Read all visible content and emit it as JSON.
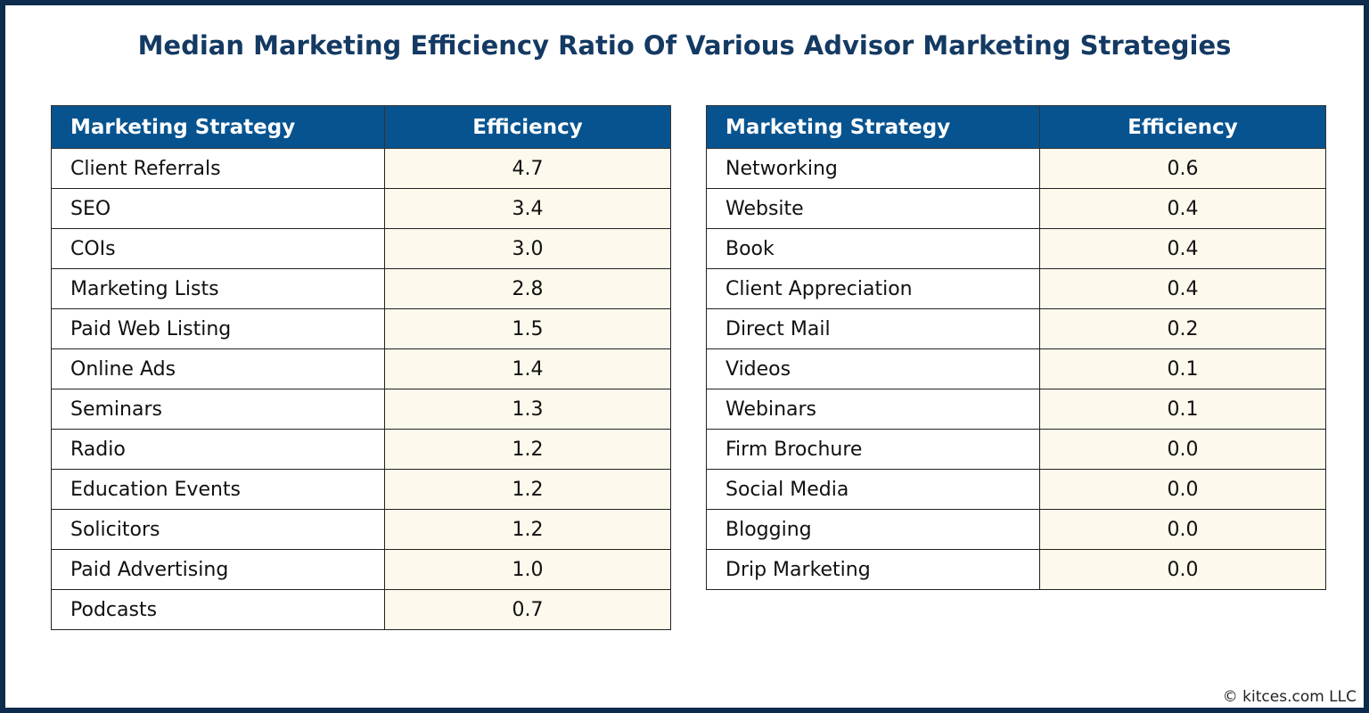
{
  "title": "Median Marketing Efficiency Ratio Of Various Advisor Marketing Strategies",
  "footer": "© kitces.com LLC",
  "colors": {
    "header_bg": "#06538f",
    "value_bg": "#fdf9ec",
    "frame": "#0d2b4c",
    "title": "#143a63"
  },
  "chart_data": [
    {
      "type": "table",
      "columns": [
        "Marketing Strategy",
        "Efficiency"
      ],
      "rows": [
        [
          "Client Referrals",
          "4.7"
        ],
        [
          "SEO",
          "3.4"
        ],
        [
          "COIs",
          "3.0"
        ],
        [
          "Marketing Lists",
          "2.8"
        ],
        [
          "Paid Web Listing",
          "1.5"
        ],
        [
          "Online Ads",
          "1.4"
        ],
        [
          "Seminars",
          "1.3"
        ],
        [
          "Radio",
          "1.2"
        ],
        [
          "Education Events",
          "1.2"
        ],
        [
          "Solicitors",
          "1.2"
        ],
        [
          "Paid Advertising",
          "1.0"
        ],
        [
          "Podcasts",
          "0.7"
        ]
      ]
    },
    {
      "type": "table",
      "columns": [
        "Marketing Strategy",
        "Efficiency"
      ],
      "rows": [
        [
          "Networking",
          "0.6"
        ],
        [
          "Website",
          "0.4"
        ],
        [
          "Book",
          "0.4"
        ],
        [
          "Client Appreciation",
          "0.4"
        ],
        [
          "Direct Mail",
          "0.2"
        ],
        [
          "Videos",
          "0.1"
        ],
        [
          "Webinars",
          "0.1"
        ],
        [
          "Firm Brochure",
          "0.0"
        ],
        [
          "Social Media",
          "0.0"
        ],
        [
          "Blogging",
          "0.0"
        ],
        [
          "Drip Marketing",
          "0.0"
        ]
      ]
    }
  ]
}
